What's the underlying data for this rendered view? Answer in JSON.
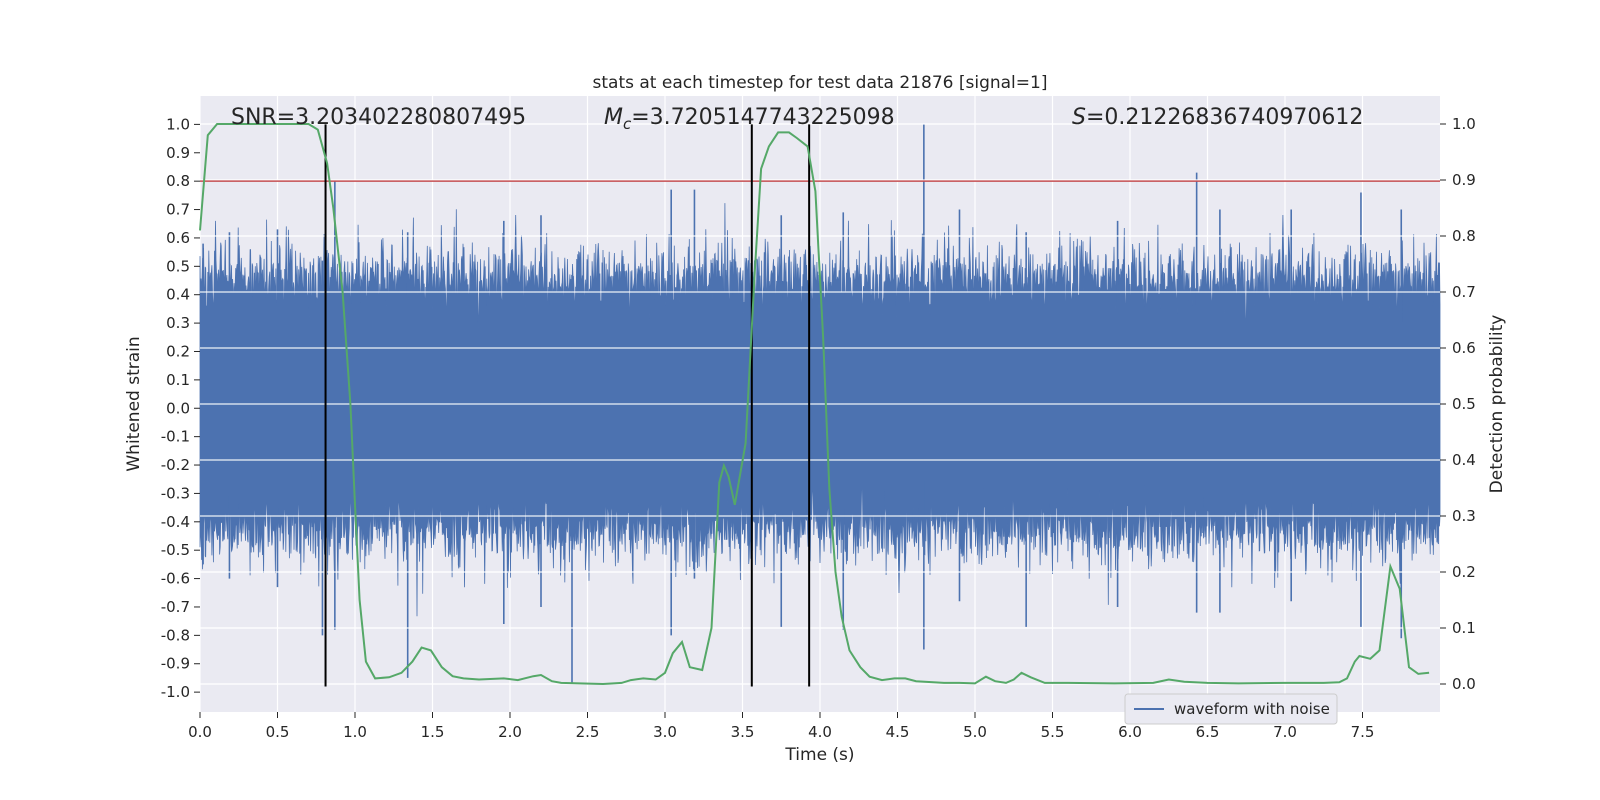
{
  "chart_data": {
    "type": "line",
    "title": "stats at each timestep for test data 21876 [signal=1]",
    "xlabel": "Time (s)",
    "ylabel_left": "Whitened strain",
    "ylabel_right": "Detection probability",
    "xlim": [
      0.0,
      8.0
    ],
    "ylim_left": [
      -1.07,
      1.1
    ],
    "ylim_right": [
      -0.05,
      1.05
    ],
    "x_ticks": [
      "0.0",
      "0.5",
      "1.0",
      "1.5",
      "2.0",
      "2.5",
      "3.0",
      "3.5",
      "4.0",
      "4.5",
      "5.0",
      "5.5",
      "6.0",
      "6.5",
      "7.0",
      "7.5"
    ],
    "y_ticks_left": [
      "1.0",
      "0.9",
      "0.8",
      "0.7",
      "0.6",
      "0.5",
      "0.4",
      "0.3",
      "0.2",
      "0.1",
      "0.0",
      "-0.1",
      "-0.2",
      "-0.3",
      "-0.4",
      "-0.5",
      "-0.6",
      "-0.7",
      "-0.8",
      "-0.9",
      "-1.0"
    ],
    "y_ticks_right": [
      "1.0",
      "0.9",
      "0.8",
      "0.7",
      "0.6",
      "0.5",
      "0.4",
      "0.3",
      "0.2",
      "0.1",
      "0.0"
    ],
    "grid": true,
    "legend": {
      "entries": [
        "waveform with noise"
      ],
      "placement": "bottom-right"
    },
    "annotations": {
      "snr": {
        "prefix": "SNR=",
        "value": "3.203402280807495"
      },
      "mc": {
        "symbol": "M",
        "sub": "c",
        "value": "=3.7205147743225098"
      },
      "s": {
        "symbol": "S",
        "value": "=0.21226836740970612"
      }
    },
    "threshold_left": 0.8,
    "vertical_lines_x": [
      0.81,
      3.56,
      3.93
    ],
    "series": [
      {
        "name": "waveform with noise",
        "axis": "left",
        "color": "#4c72b0",
        "note": "dense noise band",
        "envelope": {
          "upper_typical": 0.45,
          "lower_typical": -0.42
        },
        "peaks": [
          [
            0.02,
            0.58,
            -0.55
          ],
          [
            0.19,
            0.62,
            -0.6
          ],
          [
            0.5,
            0.63,
            -0.63
          ],
          [
            0.79,
            0.52,
            -0.8
          ],
          [
            0.87,
            0.8,
            -0.78
          ],
          [
            1.34,
            0.62,
            -0.95
          ],
          [
            1.96,
            0.66,
            -0.76
          ],
          [
            2.2,
            0.68,
            -0.7
          ],
          [
            2.4,
            0.47,
            -0.97
          ],
          [
            3.04,
            0.77,
            -0.8
          ],
          [
            3.19,
            0.77,
            -0.6
          ],
          [
            3.75,
            0.68,
            -0.77
          ],
          [
            4.15,
            0.69,
            -0.78
          ],
          [
            4.67,
            1.0,
            -0.85
          ],
          [
            4.9,
            0.7,
            -0.68
          ],
          [
            5.33,
            0.62,
            -0.77
          ],
          [
            5.92,
            0.66,
            -0.7
          ],
          [
            6.43,
            0.83,
            -0.72
          ],
          [
            6.58,
            0.7,
            -0.72
          ],
          [
            7.04,
            0.7,
            -0.68
          ],
          [
            7.49,
            0.76,
            -0.77
          ],
          [
            7.75,
            0.7,
            -0.81
          ]
        ]
      },
      {
        "name": "",
        "axis": "right",
        "color": "#55a868",
        "x": [
          0.0,
          0.05,
          0.11,
          0.2,
          0.4,
          0.6,
          0.7,
          0.76,
          0.82,
          0.86,
          0.92,
          0.97,
          1.0,
          1.03,
          1.07,
          1.13,
          1.22,
          1.3,
          1.37,
          1.43,
          1.49,
          1.56,
          1.63,
          1.7,
          1.8,
          1.96,
          2.05,
          2.15,
          2.2,
          2.27,
          2.33,
          2.45,
          2.6,
          2.72,
          2.78,
          2.86,
          2.94,
          3.0,
          3.05,
          3.11,
          3.16,
          3.24,
          3.3,
          3.35,
          3.38,
          3.41,
          3.45,
          3.52,
          3.58,
          3.62,
          3.67,
          3.73,
          3.8,
          3.85,
          3.92,
          3.97,
          4.02,
          4.06,
          4.1,
          4.14,
          4.19,
          4.26,
          4.32,
          4.4,
          4.48,
          4.55,
          4.62,
          4.8,
          4.9,
          5.0,
          5.07,
          5.13,
          5.2,
          5.25,
          5.3,
          5.36,
          5.45,
          5.6,
          5.9,
          6.15,
          6.25,
          6.35,
          6.5,
          6.7,
          7.0,
          7.25,
          7.35,
          7.4,
          7.45,
          7.48,
          7.55,
          7.61,
          7.68,
          7.74,
          7.8,
          7.86,
          7.93
        ],
        "y": [
          0.81,
          0.98,
          1.0,
          1.0,
          1.0,
          1.0,
          1.0,
          0.99,
          0.93,
          0.85,
          0.7,
          0.5,
          0.32,
          0.15,
          0.04,
          0.01,
          0.012,
          0.02,
          0.04,
          0.065,
          0.06,
          0.03,
          0.014,
          0.01,
          0.008,
          0.01,
          0.007,
          0.014,
          0.016,
          0.005,
          0.002,
          0.001,
          0.0,
          0.002,
          0.007,
          0.01,
          0.008,
          0.02,
          0.055,
          0.075,
          0.03,
          0.025,
          0.1,
          0.36,
          0.39,
          0.37,
          0.32,
          0.43,
          0.74,
          0.92,
          0.96,
          0.985,
          0.985,
          0.975,
          0.96,
          0.88,
          0.62,
          0.35,
          0.2,
          0.12,
          0.06,
          0.03,
          0.013,
          0.007,
          0.01,
          0.01,
          0.005,
          0.002,
          0.002,
          0.001,
          0.013,
          0.005,
          0.002,
          0.008,
          0.02,
          0.012,
          0.002,
          0.002,
          0.001,
          0.002,
          0.008,
          0.004,
          0.002,
          0.001,
          0.002,
          0.002,
          0.003,
          0.01,
          0.04,
          0.05,
          0.045,
          0.06,
          0.21,
          0.17,
          0.03,
          0.018,
          0.02
        ]
      }
    ]
  },
  "colors": {
    "plot_bg": "#eaeaf2",
    "grid": "#ffffff",
    "threshold": "#c44e52",
    "vline": "#000000",
    "strain": "#4c72b0",
    "prob": "#55a868"
  }
}
